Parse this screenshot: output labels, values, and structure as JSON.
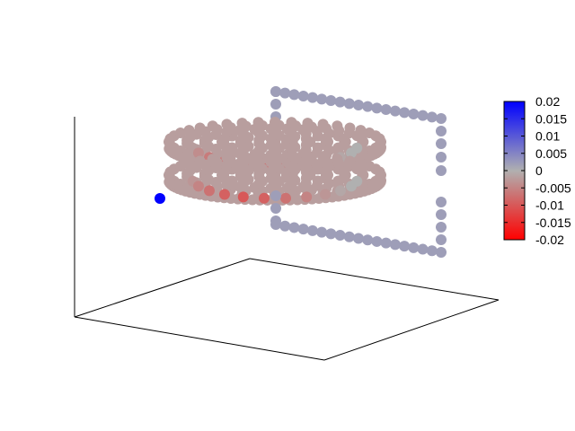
{
  "chart_data": {
    "type": "scatter",
    "projection": "3d",
    "title": "",
    "xlabel": "",
    "ylabel": "",
    "zlabel": "",
    "grid": false,
    "colorbar": {
      "placement": "right",
      "range": [
        -0.02,
        0.02
      ],
      "colormap": {
        "low": "#ff0000",
        "mid": "#b0b0b0",
        "high": "#0000ff"
      },
      "tick_values": [
        0.02,
        0.015,
        0.01,
        0.005,
        0,
        -0.005,
        -0.01,
        -0.015,
        -0.02
      ],
      "tick_labels": [
        "0.02",
        "0.015",
        "0.01",
        "0.005",
        "0",
        "-0.005",
        "-0.01",
        "-0.015",
        "-0.02"
      ]
    },
    "series": [
      {
        "kind": "disk",
        "z": 0.62,
        "radius": 1.0,
        "value": -0.002,
        "edge_values": [
          -0.002,
          -0.004,
          -0.006,
          -0.007,
          -0.008,
          -0.007,
          -0.006,
          -0.004,
          -0.002,
          -0.001,
          0,
          0
        ]
      },
      {
        "kind": "disk",
        "z": 0.4,
        "radius": 1.0,
        "value": -0.002,
        "edge_values": [
          -0.003,
          -0.005,
          -0.007,
          -0.009,
          -0.01,
          -0.009,
          -0.007,
          -0.005,
          -0.003,
          -0.001,
          0,
          0
        ]
      },
      {
        "kind": "loop",
        "value": 0.002,
        "points": "wire"
      },
      {
        "kind": "point",
        "x": -1.6,
        "y": 0.3,
        "z": 0.35,
        "value": 0.02
      }
    ]
  }
}
